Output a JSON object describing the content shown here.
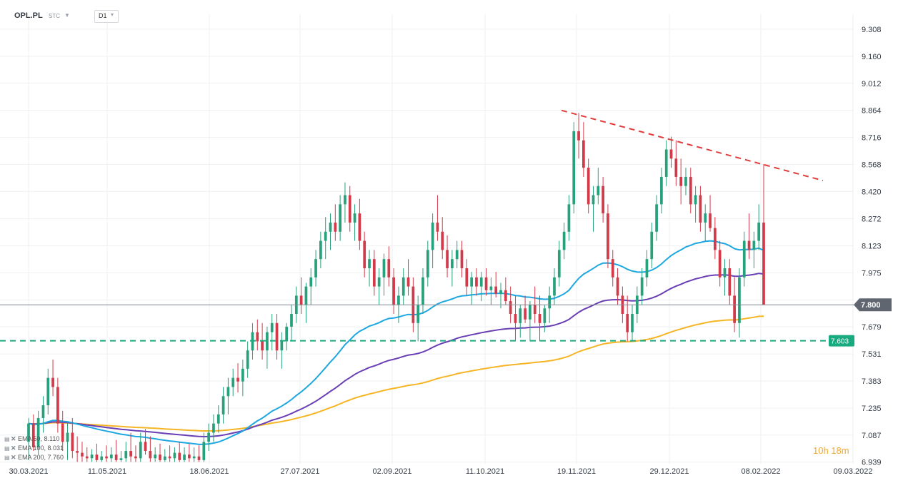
{
  "header": {
    "symbol": "OPL.PL",
    "exchange": "STC",
    "timeframe": "D1"
  },
  "timer": {
    "hours": "10",
    "h_unit": "h",
    "minutes": "18",
    "m_unit": "m"
  },
  "legend": [
    {
      "label": "EMA",
      "period": "50",
      "value": "8.110",
      "text": "EMA 50, 8.110",
      "color": "#1ea7e1"
    },
    {
      "label": "EMA",
      "period": "100",
      "value": "8.031",
      "text": "EMA 100, 8.031",
      "color": "#6a3fb5"
    },
    {
      "label": "EMA",
      "period": "200",
      "value": "7.760",
      "text": "EMA 200, 7.760",
      "color": "#f5b524"
    }
  ],
  "colors": {
    "up": "#26a17b",
    "down": "#d23a4a",
    "ema50": "#1ea7e1",
    "ema100": "#6a3fb5",
    "ema200": "#f5b524",
    "trendline": "#e03c3c",
    "support": "#1aaa7f",
    "price_line": "#808890",
    "grid": "#eef0f2"
  },
  "chart_data": {
    "type": "candlestick",
    "symbol": "OPL.PL",
    "y_ticks": [
      "9.308",
      "9.160",
      "9.012",
      "8.864",
      "8.716",
      "8.568",
      "8.420",
      "8.272",
      "8.123",
      "7.975",
      "7.827",
      "7.679",
      "7.531",
      "7.383",
      "7.235",
      "7.087",
      "6.939"
    ],
    "ylim": [
      6.93,
      9.39
    ],
    "x_ticks": [
      "30.03.2021",
      "11.05.2021",
      "18.06.2021",
      "27.07.2021",
      "02.09.2021",
      "11.10.2021",
      "19.11.2021",
      "29.12.2021",
      "08.02.2022",
      "09.03.2022"
    ],
    "current_price": {
      "value": 7.8,
      "label": "7.800"
    },
    "support_level": {
      "value": 7.603,
      "label": "7.603"
    },
    "trendline": {
      "start": {
        "date": "19.11.2021",
        "value": 8.864
      },
      "end": {
        "date": "09.03.2022",
        "value": 8.48
      }
    },
    "candles_ohlc": [
      [
        7.05,
        7.18,
        6.95,
        7.15
      ],
      [
        7.15,
        7.2,
        7.0,
        7.02
      ],
      [
        7.02,
        7.22,
        6.98,
        7.18
      ],
      [
        7.18,
        7.3,
        7.1,
        7.25
      ],
      [
        7.25,
        7.45,
        7.2,
        7.4
      ],
      [
        7.4,
        7.5,
        7.3,
        7.35
      ],
      [
        7.35,
        7.4,
        7.1,
        7.15
      ],
      [
        7.15,
        7.22,
        7.0,
        7.05
      ],
      [
        7.05,
        7.15,
        6.95,
        7.1
      ],
      [
        7.1,
        7.18,
        6.96,
        7.0
      ],
      [
        7.0,
        7.08,
        6.94,
        6.99
      ],
      [
        6.99,
        7.05,
        6.94,
        6.97
      ],
      [
        6.97,
        7.02,
        6.94,
        6.96
      ],
      [
        6.96,
        7.01,
        6.94,
        6.98
      ],
      [
        6.98,
        7.04,
        6.94,
        6.95
      ],
      [
        6.95,
        7.0,
        6.94,
        6.97
      ],
      [
        6.97,
        7.03,
        6.94,
        6.96
      ],
      [
        6.96,
        7.02,
        6.94,
        6.98
      ],
      [
        6.98,
        7.06,
        6.94,
        6.95
      ],
      [
        6.95,
        7.0,
        6.94,
        6.96
      ],
      [
        6.96,
        7.05,
        6.94,
        7.0
      ],
      [
        7.0,
        7.1,
        6.94,
        6.97
      ],
      [
        6.97,
        7.03,
        6.94,
        6.96
      ],
      [
        6.96,
        7.1,
        6.94,
        7.05
      ],
      [
        7.05,
        7.12,
        6.98,
        7.0
      ],
      [
        7.0,
        7.08,
        6.94,
        6.96
      ],
      [
        6.96,
        7.02,
        6.94,
        6.98
      ],
      [
        6.98,
        7.04,
        6.94,
        6.95
      ],
      [
        6.95,
        7.01,
        6.94,
        6.97
      ],
      [
        6.97,
        7.03,
        6.94,
        6.96
      ],
      [
        6.96,
        7.02,
        6.94,
        6.99
      ],
      [
        6.99,
        7.05,
        6.94,
        6.95
      ],
      [
        6.95,
        7.02,
        6.94,
        6.98
      ],
      [
        6.98,
        7.04,
        6.94,
        6.96
      ],
      [
        6.96,
        7.02,
        6.94,
        6.97
      ],
      [
        6.97,
        7.03,
        6.94,
        6.95
      ],
      [
        6.95,
        7.1,
        6.94,
        7.05
      ],
      [
        7.05,
        7.15,
        7.0,
        7.1
      ],
      [
        7.1,
        7.2,
        7.05,
        7.15
      ],
      [
        7.15,
        7.25,
        7.1,
        7.2
      ],
      [
        7.2,
        7.35,
        7.15,
        7.3
      ],
      [
        7.3,
        7.4,
        7.2,
        7.35
      ],
      [
        7.35,
        7.45,
        7.3,
        7.4
      ],
      [
        7.4,
        7.48,
        7.32,
        7.38
      ],
      [
        7.38,
        7.5,
        7.3,
        7.45
      ],
      [
        7.45,
        7.6,
        7.4,
        7.55
      ],
      [
        7.55,
        7.7,
        7.5,
        7.65
      ],
      [
        7.65,
        7.72,
        7.55,
        7.6
      ],
      [
        7.6,
        7.7,
        7.5,
        7.55
      ],
      [
        7.55,
        7.68,
        7.45,
        7.65
      ],
      [
        7.65,
        7.75,
        7.55,
        7.7
      ],
      [
        7.7,
        7.75,
        7.5,
        7.55
      ],
      [
        7.55,
        7.65,
        7.45,
        7.6
      ],
      [
        7.6,
        7.7,
        7.55,
        7.68
      ],
      [
        7.68,
        7.8,
        7.6,
        7.75
      ],
      [
        7.75,
        7.9,
        7.7,
        7.85
      ],
      [
        7.85,
        7.95,
        7.75,
        7.8
      ],
      [
        7.8,
        7.92,
        7.7,
        7.9
      ],
      [
        7.9,
        8.0,
        7.8,
        7.95
      ],
      [
        7.95,
        8.1,
        7.9,
        8.05
      ],
      [
        8.05,
        8.2,
        8.0,
        8.15
      ],
      [
        8.15,
        8.28,
        8.05,
        8.2
      ],
      [
        8.2,
        8.3,
        8.1,
        8.25
      ],
      [
        8.25,
        8.35,
        8.15,
        8.2
      ],
      [
        8.2,
        8.4,
        8.15,
        8.35
      ],
      [
        8.35,
        8.47,
        8.25,
        8.4
      ],
      [
        8.4,
        8.45,
        8.2,
        8.25
      ],
      [
        8.25,
        8.35,
        8.15,
        8.3
      ],
      [
        8.3,
        8.38,
        8.1,
        8.15
      ],
      [
        8.15,
        8.2,
        7.95,
        8.0
      ],
      [
        8.0,
        8.1,
        7.9,
        8.05
      ],
      [
        8.05,
        8.1,
        7.85,
        7.9
      ],
      [
        7.9,
        8.0,
        7.8,
        7.95
      ],
      [
        7.95,
        8.08,
        7.85,
        8.05
      ],
      [
        8.05,
        8.12,
        7.9,
        7.95
      ],
      [
        7.95,
        8.0,
        7.75,
        7.8
      ],
      [
        7.8,
        7.9,
        7.7,
        7.85
      ],
      [
        7.85,
        8.0,
        7.8,
        7.95
      ],
      [
        7.95,
        8.05,
        7.85,
        7.9
      ],
      [
        7.9,
        7.95,
        7.65,
        7.7
      ],
      [
        7.7,
        7.85,
        7.6,
        7.8
      ],
      [
        7.8,
        8.0,
        7.75,
        7.95
      ],
      [
        7.95,
        8.15,
        7.9,
        8.1
      ],
      [
        8.1,
        8.3,
        8.0,
        8.25
      ],
      [
        8.25,
        8.4,
        8.15,
        8.2
      ],
      [
        8.2,
        8.28,
        8.05,
        8.1
      ],
      [
        8.1,
        8.18,
        7.95,
        8.0
      ],
      [
        8.0,
        8.1,
        7.9,
        8.05
      ],
      [
        8.05,
        8.15,
        8.0,
        8.1
      ],
      [
        8.1,
        8.15,
        7.95,
        8.0
      ],
      [
        8.0,
        8.05,
        7.85,
        7.9
      ],
      [
        7.9,
        7.98,
        7.8,
        7.95
      ],
      [
        7.95,
        8.0,
        7.85,
        7.9
      ],
      [
        7.9,
        7.98,
        7.82,
        7.95
      ],
      [
        7.95,
        8.0,
        7.85,
        7.88
      ],
      [
        7.88,
        7.95,
        7.8,
        7.9
      ],
      [
        7.9,
        7.98,
        7.84,
        7.86
      ],
      [
        7.86,
        7.92,
        7.78,
        7.88
      ],
      [
        7.88,
        7.95,
        7.8,
        7.82
      ],
      [
        7.82,
        7.9,
        7.7,
        7.75
      ],
      [
        7.75,
        7.85,
        7.6,
        7.7
      ],
      [
        7.7,
        7.8,
        7.62,
        7.78
      ],
      [
        7.78,
        7.85,
        7.7,
        7.72
      ],
      [
        7.72,
        7.82,
        7.6,
        7.8
      ],
      [
        7.8,
        7.9,
        7.7,
        7.75
      ],
      [
        7.75,
        7.85,
        7.6,
        7.7
      ],
      [
        7.7,
        7.8,
        7.65,
        7.78
      ],
      [
        7.78,
        7.9,
        7.7,
        7.85
      ],
      [
        7.85,
        8.0,
        7.8,
        7.95
      ],
      [
        7.95,
        8.15,
        7.9,
        8.1
      ],
      [
        8.1,
        8.25,
        8.05,
        8.2
      ],
      [
        8.2,
        8.4,
        8.15,
        8.35
      ],
      [
        8.35,
        8.8,
        8.3,
        8.75
      ],
      [
        8.75,
        8.85,
        8.6,
        8.7
      ],
      [
        8.7,
        8.8,
        8.5,
        8.55
      ],
      [
        8.55,
        8.6,
        8.3,
        8.35
      ],
      [
        8.35,
        8.45,
        8.2,
        8.4
      ],
      [
        8.4,
        8.55,
        8.35,
        8.45
      ],
      [
        8.45,
        8.5,
        8.25,
        8.3
      ],
      [
        8.3,
        8.35,
        8.0,
        8.05
      ],
      [
        8.05,
        8.1,
        7.9,
        7.95
      ],
      [
        7.95,
        8.0,
        7.8,
        7.85
      ],
      [
        7.85,
        7.9,
        7.7,
        7.75
      ],
      [
        7.75,
        7.85,
        7.6,
        7.65
      ],
      [
        7.65,
        7.8,
        7.6,
        7.75
      ],
      [
        7.75,
        7.9,
        7.7,
        7.85
      ],
      [
        7.85,
        8.0,
        7.8,
        7.95
      ],
      [
        7.95,
        8.1,
        7.9,
        8.05
      ],
      [
        8.05,
        8.25,
        8.0,
        8.2
      ],
      [
        8.2,
        8.4,
        8.15,
        8.35
      ],
      [
        8.35,
        8.55,
        8.3,
        8.5
      ],
      [
        8.5,
        8.7,
        8.45,
        8.65
      ],
      [
        8.65,
        8.72,
        8.55,
        8.6
      ],
      [
        8.6,
        8.7,
        8.45,
        8.5
      ],
      [
        8.5,
        8.6,
        8.35,
        8.45
      ],
      [
        8.45,
        8.55,
        8.4,
        8.5
      ],
      [
        8.5,
        8.55,
        8.3,
        8.35
      ],
      [
        8.35,
        8.45,
        8.25,
        8.4
      ],
      [
        8.4,
        8.45,
        8.2,
        8.25
      ],
      [
        8.25,
        8.35,
        8.15,
        8.3
      ],
      [
        8.3,
        8.4,
        8.2,
        8.22
      ],
      [
        8.22,
        8.28,
        8.05,
        8.1
      ],
      [
        8.1,
        8.15,
        7.9,
        7.95
      ],
      [
        7.95,
        8.05,
        7.85,
        8.0
      ],
      [
        8.0,
        8.05,
        7.8,
        7.85
      ],
      [
        7.85,
        7.95,
        7.65,
        7.7
      ],
      [
        7.7,
        8.0,
        7.62,
        7.95
      ],
      [
        7.95,
        8.2,
        7.9,
        8.15
      ],
      [
        8.15,
        8.3,
        8.05,
        8.1
      ],
      [
        8.1,
        8.2,
        8.0,
        8.15
      ],
      [
        8.15,
        8.35,
        8.1,
        8.25
      ],
      [
        8.25,
        8.57,
        8.1,
        7.8
      ]
    ]
  }
}
